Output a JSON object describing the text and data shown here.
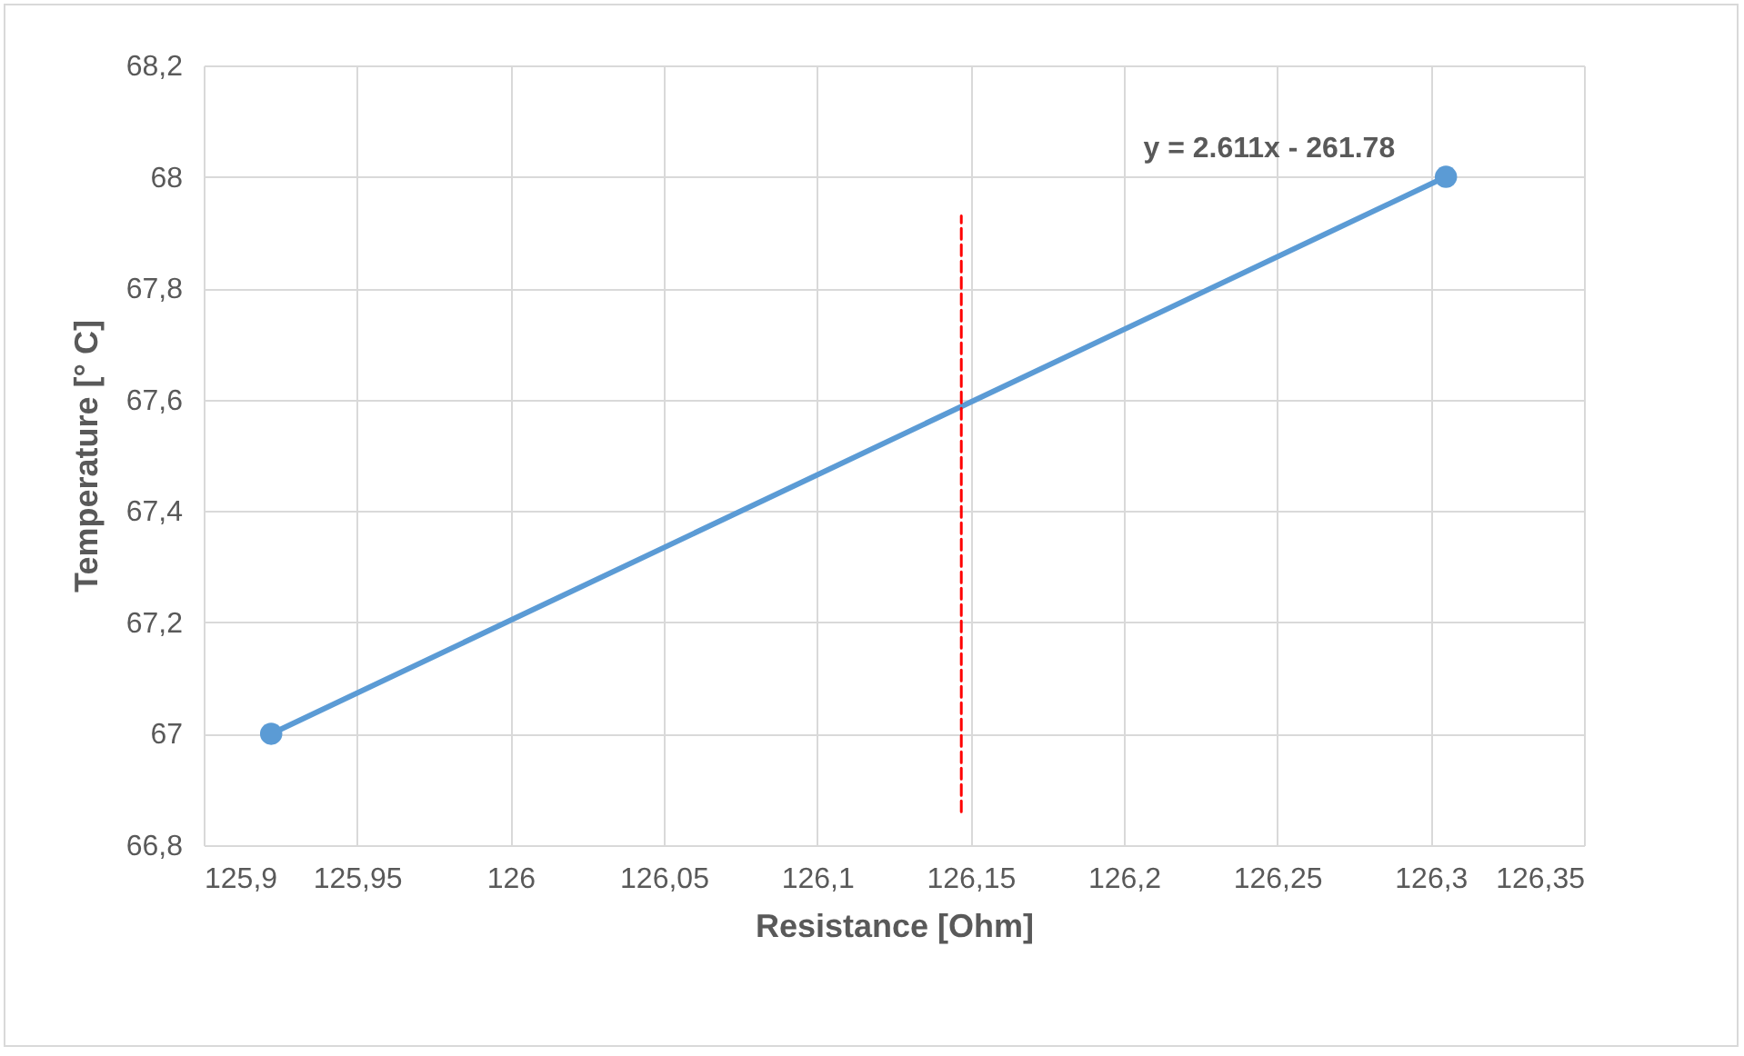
{
  "chart_data": {
    "type": "line",
    "xlabel": "Resistance [Ohm]",
    "ylabel": "Temperature [° C]",
    "series": [
      {
        "color": "#5b9bd5",
        "x": [
          125.922,
          126.305
        ],
        "values": [
          67,
          68
        ],
        "marker": "circle",
        "line_style": "solid"
      },
      {
        "color": "#ff0000",
        "x": [
          126.147,
          126.147
        ],
        "values": [
          66.86,
          67.93
        ],
        "marker": "none",
        "line_style": "dashed"
      }
    ],
    "xlim": [
      125.9,
      126.35
    ],
    "xticks": [
      {
        "value": 125.9,
        "label": "125,9"
      },
      {
        "value": 125.95,
        "label": "125,95"
      },
      126,
      {
        "value": 126.05,
        "label": "126,05"
      },
      {
        "value": 126.1,
        "label": "126,1"
      },
      {
        "value": 126.15,
        "label": "126,15"
      },
      {
        "value": 126.2,
        "label": "126,2"
      },
      {
        "value": 126.25,
        "label": "126,25"
      },
      {
        "value": 126.3,
        "label": "126,3"
      },
      {
        "value": 126.35,
        "label": "126,35"
      }
    ],
    "ylim": [
      66.8,
      68.2
    ],
    "yticks": [
      {
        "value": 66.8,
        "label": "66,8"
      },
      67,
      {
        "value": 67.2,
        "label": "67,2"
      },
      {
        "value": 67.4,
        "label": "67,4"
      },
      {
        "value": 67.6,
        "label": "67,6"
      },
      {
        "value": 67.8,
        "label": "67,8"
      },
      68,
      {
        "value": 68.2,
        "label": "68,2"
      }
    ],
    "annotations": [
      "y = 2.611x - 261.78"
    ],
    "grid": true
  }
}
